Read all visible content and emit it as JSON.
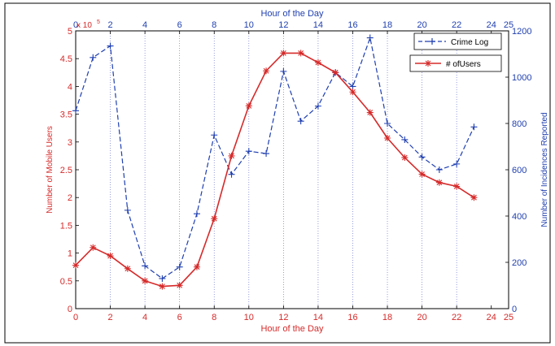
{
  "chart_data": {
    "type": "line",
    "top_axis_title": "Hour of the Day",
    "bottom_axis_title": "Hour of the Day",
    "ylabel_left": "Number of Mobile Users",
    "ylabel_right": "Number of Incidences Reported",
    "left_exponent_base": "x 10",
    "left_exponent_power": "5",
    "xlim": [
      0,
      25
    ],
    "x_ticks": [
      "0",
      "2",
      "4",
      "6",
      "8",
      "10",
      "12",
      "14",
      "16",
      "18",
      "20",
      "22",
      "24",
      "25"
    ],
    "ylim_left": [
      0,
      5
    ],
    "y_left_ticks": [
      "0",
      "0.5",
      "1",
      "1.5",
      "2",
      "2.5",
      "3",
      "3.5",
      "4",
      "4.5",
      "5"
    ],
    "ylim_right": [
      0,
      1200
    ],
    "y_right_ticks": [
      "0",
      "200",
      "400",
      "600",
      "800",
      "1000",
      "1200"
    ],
    "vertical_grid": [
      2,
      4,
      6,
      8,
      10,
      12,
      14,
      16,
      18,
      20,
      22
    ],
    "colors": {
      "left_axis": "#d62a2a",
      "right_axis": "#1f3fb0",
      "grid": "#6b74c9"
    },
    "series": [
      {
        "name": "Crime Log",
        "axis": "right",
        "marker": "+",
        "line_style": "dashed",
        "color": "#1f3fb0",
        "x": [
          0,
          1,
          2,
          3,
          4,
          5,
          6,
          7,
          8,
          9,
          10,
          11,
          12,
          13,
          14,
          15,
          16,
          17,
          18,
          19,
          20,
          21,
          22,
          23
        ],
        "values": [
          855,
          1085,
          1135,
          425,
          185,
          130,
          180,
          410,
          750,
          580,
          680,
          670,
          1025,
          810,
          875,
          1020,
          960,
          1170,
          800,
          730,
          655,
          600,
          625,
          785
        ]
      },
      {
        "name": "# ofUsers",
        "axis": "left",
        "marker": "*",
        "line_style": "solid",
        "color": "#d62a2a",
        "x": [
          0,
          1,
          2,
          3,
          4,
          5,
          6,
          7,
          8,
          9,
          10,
          11,
          12,
          13,
          14,
          15,
          16,
          17,
          18,
          19,
          20,
          21,
          22,
          23
        ],
        "values": [
          0.78,
          1.1,
          0.95,
          0.72,
          0.5,
          0.4,
          0.42,
          0.75,
          1.62,
          2.75,
          3.65,
          4.28,
          4.6,
          4.6,
          4.43,
          4.25,
          3.9,
          3.53,
          3.07,
          2.72,
          2.42,
          2.27,
          2.2,
          2.0
        ]
      }
    ]
  }
}
